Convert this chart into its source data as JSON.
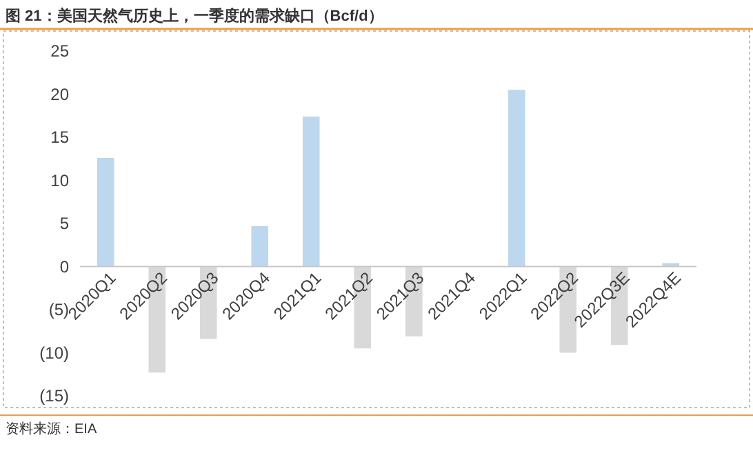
{
  "chart_data": {
    "type": "bar",
    "title": "图 21：美国天然气历史上，一季度的需求缺口（Bcf/d）",
    "categories": [
      "2020Q1",
      "2020Q2",
      "2020Q3",
      "2020Q4",
      "2021Q1",
      "2021Q2",
      "2021Q3",
      "2021Q4",
      "2022Q1",
      "2022Q2",
      "2022Q3E",
      "2022Q4E"
    ],
    "values": [
      12.6,
      -12.3,
      -8.4,
      4.7,
      17.4,
      -9.5,
      -8.1,
      0,
      20.5,
      -10.0,
      -9.1,
      0.4
    ],
    "colors": [
      "#bdd7ee",
      "#d9d9d9",
      "#d9d9d9",
      "#bdd7ee",
      "#bdd7ee",
      "#d9d9d9",
      "#d9d9d9",
      "#d9d9d9",
      "#bdd7ee",
      "#d9d9d9",
      "#d9d9d9",
      "#bdd7ee"
    ],
    "ylim": [
      -15,
      25
    ],
    "yticks": [
      {
        "value": -15,
        "label": "(15)"
      },
      {
        "value": -10,
        "label": "(10)"
      },
      {
        "value": -5,
        "label": "(5)"
      },
      0,
      5,
      10,
      15,
      20,
      25
    ],
    "grid": false,
    "annotations": [
      "资料来源：EIA"
    ]
  }
}
